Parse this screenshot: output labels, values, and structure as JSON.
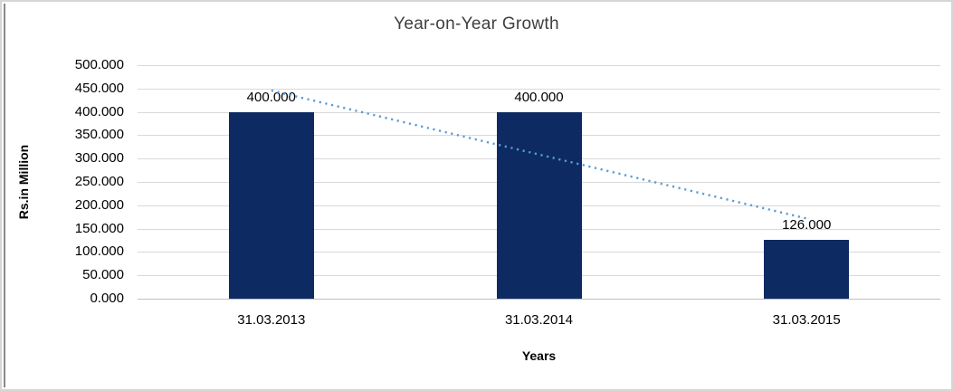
{
  "frame": {
    "outer_border_color": "#d6d6d6",
    "left_edge_line_color": "#8a8a8a",
    "background": "#ffffff"
  },
  "chart_data": {
    "type": "bar",
    "title": "Year-on-Year Growth",
    "xlabel": "Years",
    "ylabel": "Rs.in Million",
    "categories": [
      "31.03.2013",
      "31.03.2014",
      "31.03.2015"
    ],
    "values": [
      400,
      400,
      126
    ],
    "data_labels": [
      "400.000",
      "400.000",
      "126.000"
    ],
    "ylim": [
      0,
      500
    ],
    "ytick_step": 50,
    "ytick_labels": [
      "500.000",
      "450.000",
      "400.000",
      "350.000",
      "300.000",
      "250.000",
      "200.000",
      "150.000",
      "100.000",
      "50.000",
      "0.000"
    ],
    "grid": true,
    "legend_position": "none",
    "bar_color": "#0d2a63",
    "gridline_color": "#d9d9d9",
    "axis_line_color": "#bfbfbf",
    "trendline": {
      "type": "linear",
      "style": "dotted",
      "color": "#5b9bd5",
      "start_value": 445.7,
      "end_value": 171.7
    }
  }
}
